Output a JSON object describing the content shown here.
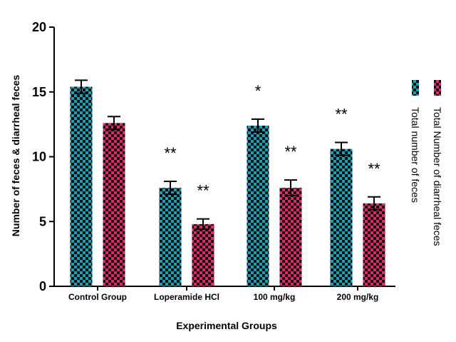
{
  "chart_data": {
    "type": "bar",
    "xlabel": "Experimental Groups",
    "ylabel": "Number of feces & diarrheal feces",
    "ylim": [
      0,
      20
    ],
    "yticks": [
      0,
      5,
      10,
      15,
      20
    ],
    "categories": [
      "Control Group",
      "Loperamide HCl",
      "100 mg/kg",
      "200 mg/kg"
    ],
    "series": [
      {
        "name": "Total number of feces",
        "color": "#1aa0b4",
        "pattern": "checkerboard",
        "values": [
          15.4,
          7.6,
          12.4,
          10.6
        ],
        "errors": [
          0.5,
          0.5,
          0.5,
          0.5
        ],
        "significance": [
          "",
          "**",
          "*",
          "**"
        ]
      },
      {
        "name": "Total Number of diarrheal feces",
        "color": "#e0286a",
        "pattern": "checkerboard",
        "values": [
          12.6,
          4.8,
          7.6,
          6.4
        ],
        "errors": [
          0.5,
          0.4,
          0.6,
          0.5
        ],
        "significance": [
          "",
          "**",
          "**",
          "**"
        ]
      }
    ],
    "legend_position": "right",
    "grid": false
  }
}
